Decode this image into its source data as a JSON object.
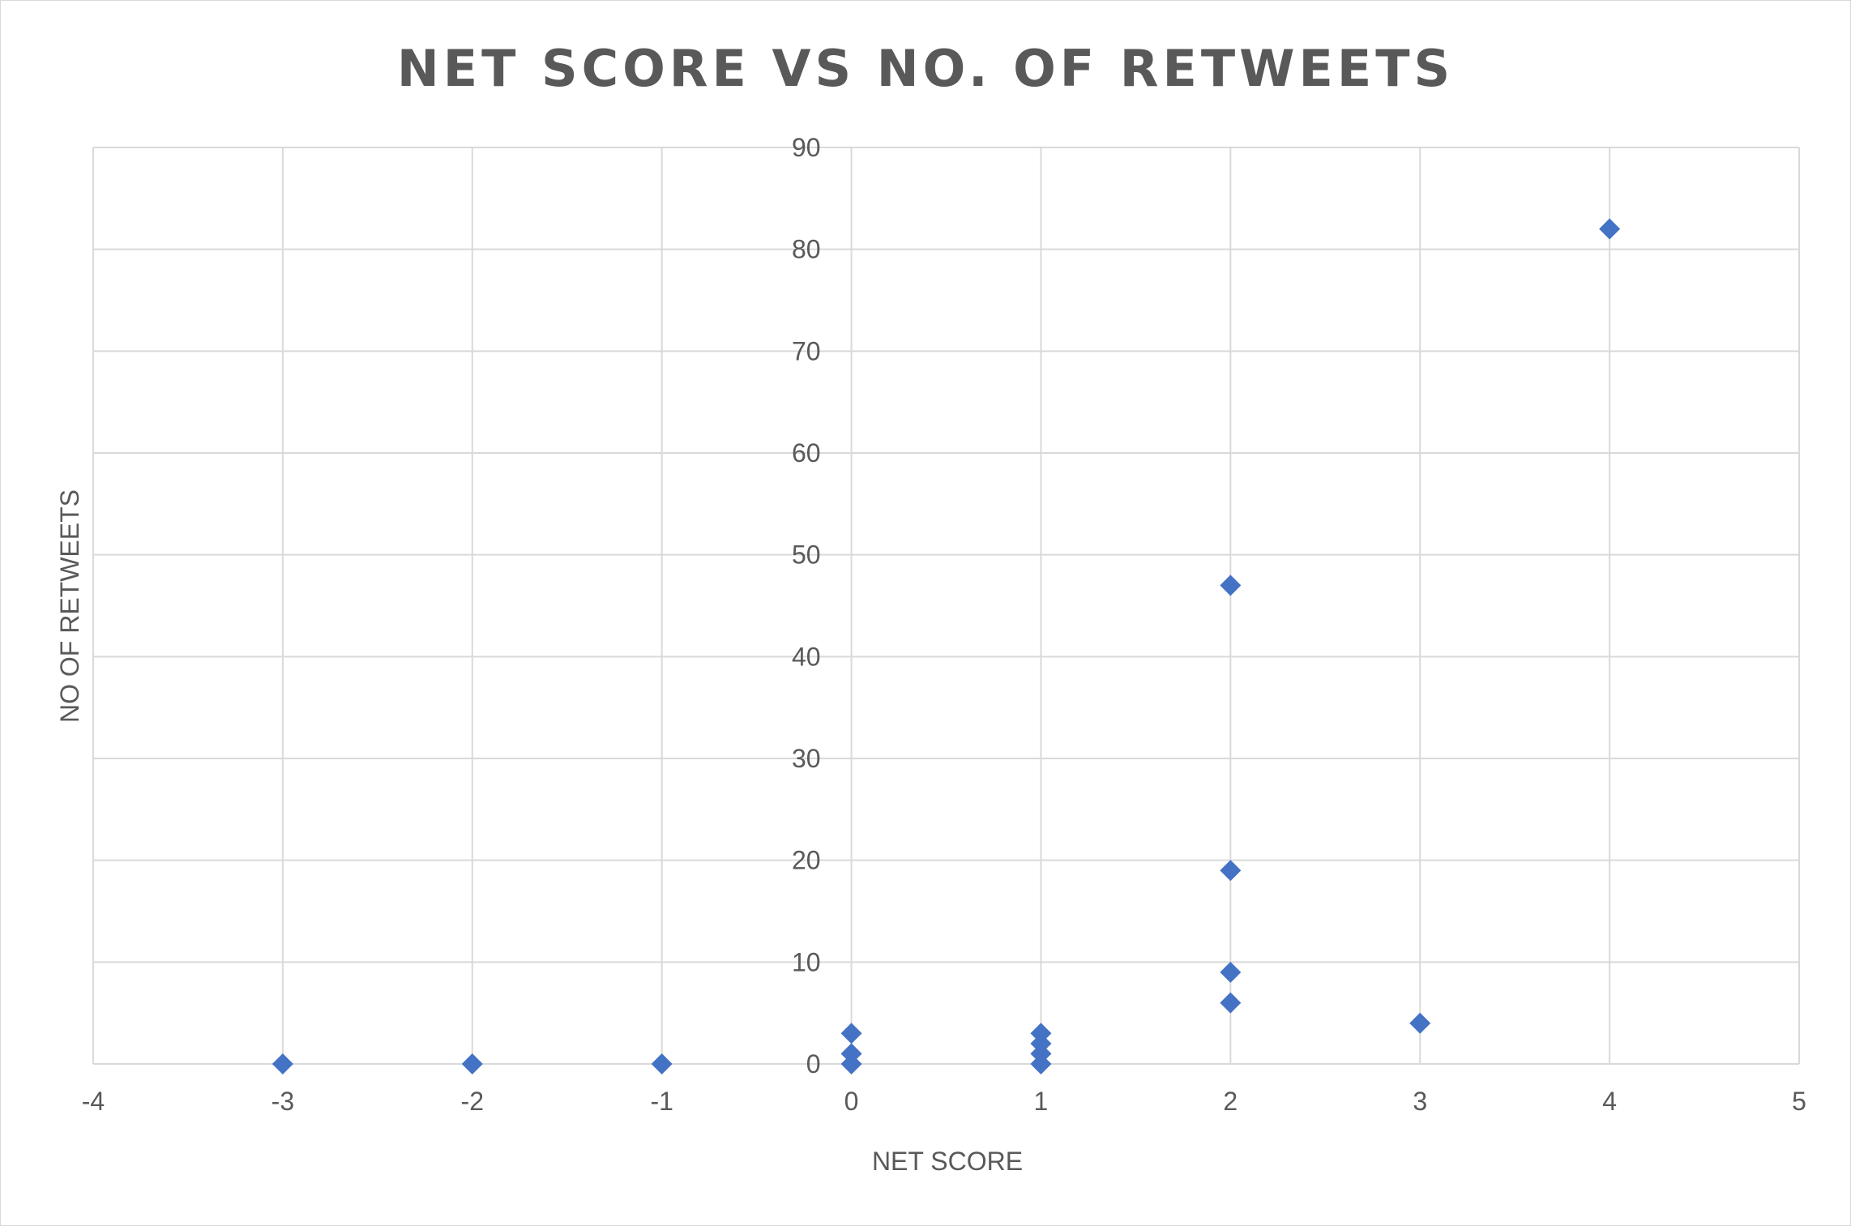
{
  "chart_data": {
    "type": "scatter",
    "title": "NET SCORE VS NO. OF RETWEETS",
    "xlabel": "NET SCORE",
    "ylabel": "NO OF RETWEETS",
    "xlim": [
      -4,
      5
    ],
    "ylim": [
      0,
      90
    ],
    "x_ticks": [
      -4,
      -3,
      -2,
      -1,
      0,
      1,
      2,
      3,
      4,
      5
    ],
    "x_tick_labels": [
      "-4",
      "-3",
      "-2",
      "-1",
      "0",
      "1",
      "2",
      "3",
      "4",
      "5"
    ],
    "y_ticks": [
      0,
      10,
      20,
      30,
      40,
      50,
      60,
      70,
      80,
      90
    ],
    "y_tick_labels": [
      "0",
      "10",
      "20",
      "30",
      "40",
      "50",
      "60",
      "70",
      "80",
      "90"
    ],
    "grid": true,
    "marker": "diamond",
    "marker_color": "#4472C4",
    "points": [
      {
        "x": -3,
        "y": 0
      },
      {
        "x": -2,
        "y": 0
      },
      {
        "x": -1,
        "y": 0
      },
      {
        "x": 0,
        "y": 0
      },
      {
        "x": 0,
        "y": 1
      },
      {
        "x": 0,
        "y": 3
      },
      {
        "x": 1,
        "y": 0
      },
      {
        "x": 1,
        "y": 1
      },
      {
        "x": 1,
        "y": 2
      },
      {
        "x": 1,
        "y": 3
      },
      {
        "x": 2,
        "y": 6
      },
      {
        "x": 2,
        "y": 9
      },
      {
        "x": 2,
        "y": 19
      },
      {
        "x": 2,
        "y": 47
      },
      {
        "x": 3,
        "y": 4
      },
      {
        "x": 4,
        "y": 82
      }
    ]
  }
}
